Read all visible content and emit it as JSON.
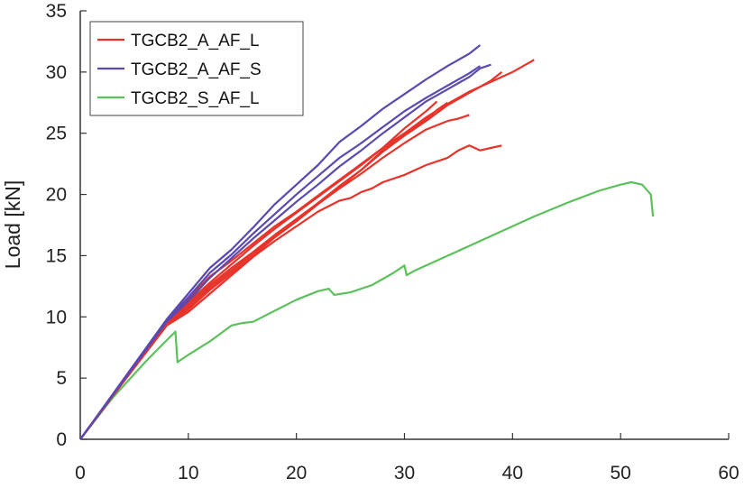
{
  "chart_data": {
    "type": "line",
    "title": "",
    "xlabel": "",
    "ylabel": "Load [kN]",
    "xlim": [
      0,
      60
    ],
    "ylim": [
      0,
      35
    ],
    "xticks": [
      0,
      10,
      20,
      30,
      40,
      50,
      60
    ],
    "yticks": [
      0,
      5,
      10,
      15,
      20,
      25,
      30,
      35
    ],
    "grid": false,
    "legend_position": "top-left",
    "legend": [
      {
        "label": "TGCB2_A_AF_L",
        "color": "#e8332a"
      },
      {
        "label": "TGCB2_A_AF_S",
        "color": "#5b48b0"
      },
      {
        "label": "TGCB2_S_AF_L",
        "color": "#5cc05c"
      }
    ],
    "series": [
      {
        "group": "TGCB2_A_AF_L",
        "color": "#e8332a",
        "points": [
          [
            0,
            0
          ],
          [
            4,
            4.8
          ],
          [
            8,
            9.6
          ],
          [
            10,
            11.5
          ],
          [
            12,
            13.3
          ],
          [
            14,
            14.6
          ],
          [
            16,
            16.0
          ],
          [
            18,
            17.4
          ],
          [
            20,
            18.6
          ],
          [
            22,
            19.9
          ],
          [
            24,
            21.2
          ],
          [
            26,
            22.5
          ],
          [
            28,
            23.8
          ],
          [
            30,
            25.0
          ],
          [
            32,
            26.3
          ],
          [
            34,
            27.4
          ],
          [
            36,
            28.4
          ],
          [
            38,
            29.2
          ],
          [
            40,
            30.0
          ],
          [
            42,
            31.0
          ]
        ]
      },
      {
        "group": "TGCB2_A_AF_L",
        "color": "#e8332a",
        "points": [
          [
            0,
            0
          ],
          [
            4,
            4.7
          ],
          [
            8,
            9.4
          ],
          [
            10,
            11.0
          ],
          [
            12,
            12.6
          ],
          [
            14,
            14.0
          ],
          [
            16,
            15.3
          ],
          [
            18,
            16.7
          ],
          [
            20,
            18.0
          ],
          [
            22,
            19.3
          ],
          [
            24,
            20.7
          ],
          [
            26,
            22.0
          ],
          [
            28,
            23.5
          ],
          [
            30,
            24.8
          ],
          [
            32,
            26.0
          ],
          [
            34,
            27.3
          ],
          [
            36,
            28.3
          ],
          [
            38,
            29.3
          ],
          [
            39,
            30.0
          ]
        ]
      },
      {
        "group": "TGCB2_A_AF_L",
        "color": "#e8332a",
        "points": [
          [
            0,
            0
          ],
          [
            4,
            4.7
          ],
          [
            8,
            9.3
          ],
          [
            10,
            10.6
          ],
          [
            12,
            12.2
          ],
          [
            14,
            13.6
          ],
          [
            16,
            15.0
          ],
          [
            18,
            16.5
          ],
          [
            20,
            17.8
          ],
          [
            22,
            19.2
          ],
          [
            24,
            20.5
          ],
          [
            26,
            21.7
          ],
          [
            28,
            23.0
          ],
          [
            30,
            24.2
          ],
          [
            32,
            25.3
          ],
          [
            34,
            26.0
          ],
          [
            35,
            26.2
          ],
          [
            36,
            26.5
          ]
        ]
      },
      {
        "group": "TGCB2_A_AF_L",
        "color": "#e8332a",
        "points": [
          [
            0,
            0
          ],
          [
            4,
            4.7
          ],
          [
            8,
            9.4
          ],
          [
            10,
            10.8
          ],
          [
            12,
            12.4
          ],
          [
            14,
            13.8
          ],
          [
            16,
            15.2
          ],
          [
            18,
            16.6
          ],
          [
            20,
            17.9
          ],
          [
            22,
            19.3
          ],
          [
            24,
            20.6
          ],
          [
            26,
            22.0
          ],
          [
            28,
            23.6
          ],
          [
            30,
            24.9
          ],
          [
            32,
            26.1
          ],
          [
            33,
            26.9
          ],
          [
            34,
            27.5
          ]
        ]
      },
      {
        "group": "TGCB2_A_AF_L",
        "color": "#e8332a",
        "points": [
          [
            0,
            0
          ],
          [
            4,
            4.8
          ],
          [
            8,
            9.6
          ],
          [
            10,
            11.2
          ],
          [
            12,
            12.8
          ],
          [
            14,
            14.3
          ],
          [
            16,
            15.8
          ],
          [
            18,
            17.2
          ],
          [
            20,
            18.5
          ],
          [
            22,
            19.8
          ],
          [
            24,
            21.1
          ],
          [
            26,
            22.4
          ],
          [
            28,
            23.8
          ],
          [
            30,
            25.4
          ],
          [
            32,
            26.8
          ],
          [
            33,
            27.6
          ]
        ]
      },
      {
        "group": "TGCB2_A_AF_L",
        "color": "#e8332a",
        "points": [
          [
            0,
            0
          ],
          [
            4,
            4.7
          ],
          [
            8,
            9.3
          ],
          [
            10,
            10.4
          ],
          [
            12,
            11.9
          ],
          [
            14,
            13.4
          ],
          [
            16,
            14.9
          ],
          [
            18,
            16.2
          ],
          [
            20,
            17.4
          ],
          [
            22,
            18.6
          ],
          [
            24,
            19.5
          ],
          [
            25,
            19.7
          ],
          [
            26,
            20.2
          ],
          [
            27,
            20.5
          ],
          [
            28,
            21.0
          ],
          [
            30,
            21.6
          ],
          [
            32,
            22.4
          ],
          [
            34,
            23.0
          ],
          [
            35,
            23.6
          ],
          [
            36,
            24.0
          ],
          [
            37,
            23.6
          ],
          [
            38,
            23.8
          ],
          [
            39,
            24.0
          ]
        ]
      },
      {
        "group": "TGCB2_A_AF_S",
        "color": "#5b48b0",
        "points": [
          [
            0,
            0
          ],
          [
            4,
            4.9
          ],
          [
            8,
            9.8
          ],
          [
            10,
            11.9
          ],
          [
            12,
            14.0
          ],
          [
            14,
            15.5
          ],
          [
            16,
            17.3
          ],
          [
            18,
            19.2
          ],
          [
            20,
            20.8
          ],
          [
            22,
            22.4
          ],
          [
            24,
            24.3
          ],
          [
            26,
            25.6
          ],
          [
            28,
            27.0
          ],
          [
            30,
            28.2
          ],
          [
            32,
            29.4
          ],
          [
            34,
            30.5
          ],
          [
            36,
            31.5
          ],
          [
            37,
            32.2
          ]
        ]
      },
      {
        "group": "TGCB2_A_AF_S",
        "color": "#5b48b0",
        "points": [
          [
            0,
            0
          ],
          [
            4,
            4.8
          ],
          [
            8,
            9.7
          ],
          [
            10,
            11.6
          ],
          [
            12,
            13.6
          ],
          [
            14,
            15.1
          ],
          [
            16,
            16.8
          ],
          [
            18,
            18.4
          ],
          [
            20,
            20.0
          ],
          [
            22,
            21.5
          ],
          [
            24,
            23.0
          ],
          [
            26,
            24.2
          ],
          [
            28,
            25.5
          ],
          [
            30,
            26.8
          ],
          [
            32,
            27.9
          ],
          [
            34,
            28.9
          ],
          [
            36,
            29.9
          ],
          [
            37,
            30.5
          ]
        ]
      },
      {
        "group": "TGCB2_A_AF_S",
        "color": "#5b48b0",
        "points": [
          [
            0,
            0
          ],
          [
            4,
            4.8
          ],
          [
            8,
            9.6
          ],
          [
            10,
            11.3
          ],
          [
            12,
            13.2
          ],
          [
            14,
            14.8
          ],
          [
            16,
            16.4
          ],
          [
            18,
            17.9
          ],
          [
            20,
            19.4
          ],
          [
            22,
            20.8
          ],
          [
            24,
            22.3
          ],
          [
            26,
            23.6
          ],
          [
            28,
            25.0
          ],
          [
            30,
            26.3
          ],
          [
            32,
            27.6
          ],
          [
            34,
            28.6
          ],
          [
            36,
            29.6
          ],
          [
            37,
            30.3
          ],
          [
            38,
            30.6
          ]
        ]
      },
      {
        "group": "TGCB2_S_AF_L",
        "color": "#5cc05c",
        "points": [
          [
            0,
            0
          ],
          [
            3,
            3.4
          ],
          [
            6,
            6.3
          ],
          [
            8,
            8.1
          ],
          [
            8.8,
            8.8
          ],
          [
            9.0,
            6.3
          ],
          [
            10,
            6.9
          ],
          [
            12,
            8.0
          ],
          [
            14,
            9.3
          ],
          [
            15,
            9.5
          ],
          [
            16,
            9.6
          ],
          [
            18,
            10.5
          ],
          [
            20,
            11.4
          ],
          [
            22,
            12.1
          ],
          [
            23,
            12.3
          ],
          [
            23.5,
            11.8
          ],
          [
            25,
            12.0
          ],
          [
            27,
            12.6
          ],
          [
            29,
            13.6
          ],
          [
            30,
            14.2
          ],
          [
            30.2,
            13.4
          ],
          [
            31,
            13.8
          ],
          [
            33,
            14.6
          ],
          [
            36,
            15.8
          ],
          [
            39,
            17.0
          ],
          [
            42,
            18.2
          ],
          [
            45,
            19.3
          ],
          [
            48,
            20.3
          ],
          [
            50,
            20.8
          ],
          [
            51,
            21.0
          ],
          [
            52,
            20.8
          ],
          [
            52.8,
            20.0
          ],
          [
            53,
            18.2
          ]
        ]
      }
    ]
  }
}
